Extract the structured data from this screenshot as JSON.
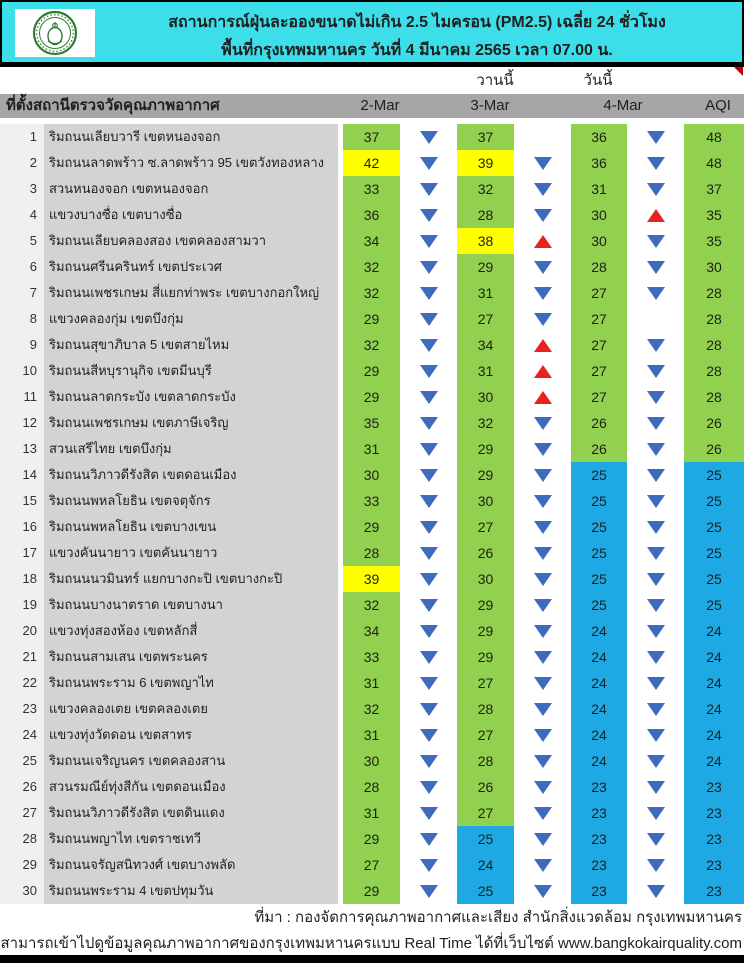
{
  "header": {
    "title_line1": "สถานการณ์ฝุ่นละอองขนาดไม่เกิน 2.5 ไมครอน (PM2.5) เฉลี่ย 24 ชั่วโมง",
    "title_line2": "พื้นที่กรุงเทพมหานคร วันที่ 4 มีนาคม 2565 เวลา 07.00 น.",
    "logo": "bma-seal"
  },
  "table": {
    "subheader": {
      "yesterday": "วานนี้",
      "today": "วันนี้"
    },
    "columns": {
      "station": "ที่ตั้งสถานีตรวจวัดคุณภาพอากาศ",
      "d1": "2-Mar",
      "d2": "3-Mar",
      "d3": "4-Mar",
      "aqi": "AQI"
    },
    "rows": [
      {
        "no": "1",
        "name": "ริมถนนเลียบวารี เขตหนองจอก",
        "v": [
          "37",
          "37",
          "36",
          "48"
        ],
        "c": [
          "green",
          "green",
          "green",
          "green"
        ],
        "a": [
          "down",
          "none",
          "down"
        ]
      },
      {
        "no": "2",
        "name": "ริมถนนลาดพร้าว ซ.ลาดพร้าว 95 เขตวังทองหลาง",
        "v": [
          "42",
          "39",
          "36",
          "48"
        ],
        "c": [
          "yellow",
          "yellow",
          "green",
          "green"
        ],
        "a": [
          "down",
          "down",
          "down"
        ]
      },
      {
        "no": "3",
        "name": "สวนหนองจอก เขตหนองจอก",
        "v": [
          "33",
          "32",
          "31",
          "37"
        ],
        "c": [
          "green",
          "green",
          "green",
          "green"
        ],
        "a": [
          "down",
          "down",
          "down"
        ]
      },
      {
        "no": "4",
        "name": "แขวงบางซื่อ เขตบางซื่อ",
        "v": [
          "36",
          "28",
          "30",
          "35"
        ],
        "c": [
          "green",
          "green",
          "green",
          "green"
        ],
        "a": [
          "down",
          "down",
          "up"
        ]
      },
      {
        "no": "5",
        "name": "ริมถนนเลียบคลองสอง เขตคลองสามวา",
        "v": [
          "34",
          "38",
          "30",
          "35"
        ],
        "c": [
          "green",
          "yellow",
          "green",
          "green"
        ],
        "a": [
          "down",
          "up",
          "down"
        ]
      },
      {
        "no": "6",
        "name": "ริมถนนศรีนครินทร์ เขตประเวศ",
        "v": [
          "32",
          "29",
          "28",
          "30"
        ],
        "c": [
          "green",
          "green",
          "green",
          "green"
        ],
        "a": [
          "down",
          "down",
          "down"
        ]
      },
      {
        "no": "7",
        "name": "ริมถนนเพชรเกษม สี่แยกท่าพระ เขตบางกอกใหญ่",
        "v": [
          "32",
          "31",
          "27",
          "28"
        ],
        "c": [
          "green",
          "green",
          "green",
          "green"
        ],
        "a": [
          "down",
          "down",
          "down"
        ]
      },
      {
        "no": "8",
        "name": "แขวงคลองกุ่ม เขตบึงกุ่ม",
        "v": [
          "29",
          "27",
          "27",
          "28"
        ],
        "c": [
          "green",
          "green",
          "green",
          "green"
        ],
        "a": [
          "down",
          "down",
          "none"
        ]
      },
      {
        "no": "9",
        "name": "ริมถนนสุขาภิบาล 5 เขตสายไหม",
        "v": [
          "32",
          "34",
          "27",
          "28"
        ],
        "c": [
          "green",
          "green",
          "green",
          "green"
        ],
        "a": [
          "down",
          "up",
          "down"
        ]
      },
      {
        "no": "10",
        "name": "ริมถนนสีหบุรานุกิจ เขตมีนบุรี",
        "v": [
          "29",
          "31",
          "27",
          "28"
        ],
        "c": [
          "green",
          "green",
          "green",
          "green"
        ],
        "a": [
          "down",
          "up",
          "down"
        ]
      },
      {
        "no": "11",
        "name": "ริมถนนลาดกระบัง เขตลาดกระบัง",
        "v": [
          "29",
          "30",
          "27",
          "28"
        ],
        "c": [
          "green",
          "green",
          "green",
          "green"
        ],
        "a": [
          "down",
          "up",
          "down"
        ]
      },
      {
        "no": "12",
        "name": "ริมถนนเพชรเกษม เขตภาษีเจริญ",
        "v": [
          "35",
          "32",
          "26",
          "26"
        ],
        "c": [
          "green",
          "green",
          "green",
          "green"
        ],
        "a": [
          "down",
          "down",
          "down"
        ]
      },
      {
        "no": "13",
        "name": "สวนเสรีไทย เขตบึงกุ่ม",
        "v": [
          "31",
          "29",
          "26",
          "26"
        ],
        "c": [
          "green",
          "green",
          "green",
          "green"
        ],
        "a": [
          "down",
          "down",
          "down"
        ]
      },
      {
        "no": "14",
        "name": "ริมถนนวิภาวดีรังสิต เขตดอนเมือง",
        "v": [
          "30",
          "29",
          "25",
          "25"
        ],
        "c": [
          "green",
          "green",
          "blue",
          "blue"
        ],
        "a": [
          "down",
          "down",
          "down"
        ]
      },
      {
        "no": "15",
        "name": "ริมถนนพหลโยธิน เขตจตุจักร",
        "v": [
          "33",
          "30",
          "25",
          "25"
        ],
        "c": [
          "green",
          "green",
          "blue",
          "blue"
        ],
        "a": [
          "down",
          "down",
          "down"
        ]
      },
      {
        "no": "16",
        "name": "ริมถนนพหลโยธิน เขตบางเขน",
        "v": [
          "29",
          "27",
          "25",
          "25"
        ],
        "c": [
          "green",
          "green",
          "blue",
          "blue"
        ],
        "a": [
          "down",
          "down",
          "down"
        ]
      },
      {
        "no": "17",
        "name": "แขวงคันนายาว เขตคันนายาว",
        "v": [
          "28",
          "26",
          "25",
          "25"
        ],
        "c": [
          "green",
          "green",
          "blue",
          "blue"
        ],
        "a": [
          "down",
          "down",
          "down"
        ]
      },
      {
        "no": "18",
        "name": "ริมถนนนวมินทร์ แยกบางกะปิ เขตบางกะปิ",
        "v": [
          "39",
          "30",
          "25",
          "25"
        ],
        "c": [
          "yellow",
          "green",
          "blue",
          "blue"
        ],
        "a": [
          "down",
          "down",
          "down"
        ]
      },
      {
        "no": "19",
        "name": "ริมถนนบางนาตราด เขตบางนา",
        "v": [
          "32",
          "29",
          "25",
          "25"
        ],
        "c": [
          "green",
          "green",
          "blue",
          "blue"
        ],
        "a": [
          "down",
          "down",
          "down"
        ]
      },
      {
        "no": "20",
        "name": "แขวงทุ่งสองห้อง เขตหลักสี่",
        "v": [
          "34",
          "29",
          "24",
          "24"
        ],
        "c": [
          "green",
          "green",
          "blue",
          "blue"
        ],
        "a": [
          "down",
          "down",
          "down"
        ]
      },
      {
        "no": "21",
        "name": "ริมถนนสามเสน เขตพระนคร",
        "v": [
          "33",
          "29",
          "24",
          "24"
        ],
        "c": [
          "green",
          "green",
          "blue",
          "blue"
        ],
        "a": [
          "down",
          "down",
          "down"
        ]
      },
      {
        "no": "22",
        "name": "ริมถนนพระราม 6 เขตพญาไท",
        "v": [
          "31",
          "27",
          "24",
          "24"
        ],
        "c": [
          "green",
          "green",
          "blue",
          "blue"
        ],
        "a": [
          "down",
          "down",
          "down"
        ]
      },
      {
        "no": "23",
        "name": "แขวงคลองเตย เขตคลองเตย",
        "v": [
          "32",
          "28",
          "24",
          "24"
        ],
        "c": [
          "green",
          "green",
          "blue",
          "blue"
        ],
        "a": [
          "down",
          "down",
          "down"
        ]
      },
      {
        "no": "24",
        "name": "แขวงทุ่งวัดดอน เขตสาทร",
        "v": [
          "31",
          "27",
          "24",
          "24"
        ],
        "c": [
          "green",
          "green",
          "blue",
          "blue"
        ],
        "a": [
          "down",
          "down",
          "down"
        ]
      },
      {
        "no": "25",
        "name": "ริมถนนเจริญนคร เขตคลองสาน",
        "v": [
          "30",
          "28",
          "24",
          "24"
        ],
        "c": [
          "green",
          "green",
          "blue",
          "blue"
        ],
        "a": [
          "down",
          "down",
          "down"
        ]
      },
      {
        "no": "26",
        "name": "สวนรมณีย์ทุ่งสีกัน เขตดอนเมือง",
        "v": [
          "28",
          "26",
          "23",
          "23"
        ],
        "c": [
          "green",
          "green",
          "blue",
          "blue"
        ],
        "a": [
          "down",
          "down",
          "down"
        ]
      },
      {
        "no": "27",
        "name": "ริมถนนวิภาวดีรังสิต เขตดินแดง",
        "v": [
          "31",
          "27",
          "23",
          "23"
        ],
        "c": [
          "green",
          "green",
          "blue",
          "blue"
        ],
        "a": [
          "down",
          "down",
          "down"
        ]
      },
      {
        "no": "28",
        "name": "ริมถนนพญาไท เขตราชเทวี",
        "v": [
          "29",
          "25",
          "23",
          "23"
        ],
        "c": [
          "green",
          "blue",
          "blue",
          "blue"
        ],
        "a": [
          "down",
          "down",
          "down"
        ]
      },
      {
        "no": "29",
        "name": "ริมถนนจรัญสนิทวงศ์ เขตบางพลัด",
        "v": [
          "27",
          "24",
          "23",
          "23"
        ],
        "c": [
          "green",
          "blue",
          "blue",
          "blue"
        ],
        "a": [
          "down",
          "down",
          "down"
        ]
      },
      {
        "no": "30",
        "name": "ริมถนนพระราม 4 เขตปทุมวัน",
        "v": [
          "29",
          "25",
          "23",
          "23"
        ],
        "c": [
          "green",
          "blue",
          "blue",
          "blue"
        ],
        "a": [
          "down",
          "down",
          "down"
        ]
      }
    ]
  },
  "footer": {
    "source": "ที่มา : กองจัดการคุณภาพอากาศและเสียง สำนักสิ่งแวดล้อม กรุงเทพมหานคร",
    "realtime": "สามารถเข้าไปดูข้อมูลคุณภาพอากาศของกรุงเทพมหานครแบบ Real Time ได้ที่เว็บไซต์ www.bangkokairquality.com"
  },
  "colors": {
    "banner_cyan": "#3BDEE9",
    "header_gray": "#A6A6A6",
    "green": "#92D050",
    "yellow": "#FFFF00",
    "blue": "#1FA9E4",
    "arrow_blue": "#3F6BBE",
    "arrow_red": "#E8231D",
    "note_red": "#C00000",
    "seal_green": "#2E7D32"
  }
}
